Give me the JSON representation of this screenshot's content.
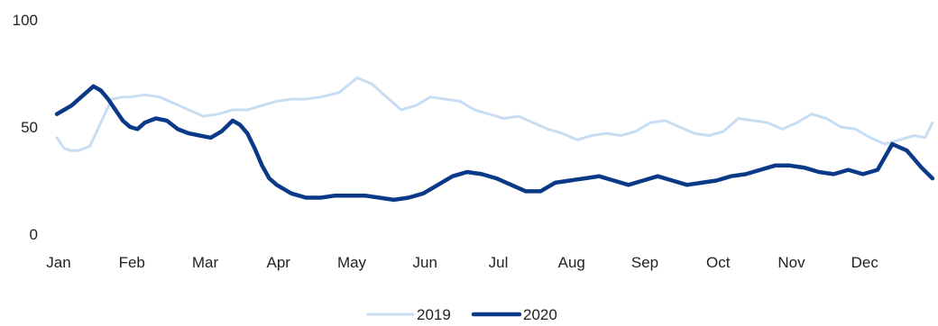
{
  "chart_data": {
    "type": "line",
    "ylim": [
      0,
      100
    ],
    "yticks": [
      "0",
      "50",
      "100"
    ],
    "grid": false,
    "legend_position": "bottom-center",
    "months": [
      "Jan",
      "Feb",
      "Mar",
      "Apr",
      "May",
      "Jun",
      "Jul",
      "Aug",
      "Sep",
      "Oct",
      "Nov",
      "Dec"
    ],
    "x_domain": [
      0,
      12
    ],
    "series": [
      {
        "name": "2019",
        "color": "#c9ddf2",
        "x": [
          0.0,
          0.1,
          0.2,
          0.3,
          0.45,
          0.6,
          0.75,
          0.9,
          1.0,
          1.2,
          1.4,
          1.6,
          1.8,
          2.0,
          2.2,
          2.4,
          2.6,
          2.8,
          3.0,
          3.2,
          3.4,
          3.6,
          3.85,
          4.1,
          4.3,
          4.5,
          4.7,
          4.9,
          5.1,
          5.3,
          5.5,
          5.7,
          5.9,
          6.1,
          6.3,
          6.5,
          6.7,
          6.9,
          7.1,
          7.3,
          7.5,
          7.7,
          7.9,
          8.1,
          8.3,
          8.5,
          8.7,
          8.9,
          9.1,
          9.3,
          9.5,
          9.7,
          9.9,
          10.1,
          10.3,
          10.5,
          10.7,
          10.9,
          11.1,
          11.3,
          11.5,
          11.7,
          11.85,
          11.95
        ],
        "values": [
          45,
          40,
          39,
          39,
          41,
          52,
          63,
          64,
          64,
          65,
          64,
          61,
          58,
          55,
          56,
          58,
          58,
          60,
          62,
          63,
          63,
          64,
          66,
          73,
          70,
          64,
          58,
          60,
          64,
          63,
          62,
          58,
          56,
          54,
          55,
          52,
          49,
          47,
          44,
          46,
          47,
          46,
          48,
          52,
          53,
          50,
          47,
          46,
          48,
          54,
          53,
          52,
          49,
          52,
          56,
          54,
          50,
          49,
          45,
          42,
          44,
          46,
          45,
          52
        ]
      },
      {
        "name": "2020",
        "color": "#0a3a87",
        "x": [
          0.0,
          0.1,
          0.2,
          0.3,
          0.4,
          0.5,
          0.6,
          0.7,
          0.8,
          0.9,
          1.0,
          1.1,
          1.2,
          1.35,
          1.5,
          1.65,
          1.8,
          1.95,
          2.1,
          2.25,
          2.4,
          2.5,
          2.6,
          2.7,
          2.8,
          2.9,
          3.0,
          3.2,
          3.4,
          3.6,
          3.8,
          4.0,
          4.2,
          4.4,
          4.6,
          4.8,
          5.0,
          5.2,
          5.4,
          5.6,
          5.8,
          6.0,
          6.2,
          6.4,
          6.6,
          6.8,
          7.0,
          7.2,
          7.4,
          7.6,
          7.8,
          8.0,
          8.2,
          8.4,
          8.6,
          8.8,
          9.0,
          9.2,
          9.4,
          9.6,
          9.8,
          10.0,
          10.2,
          10.4,
          10.6,
          10.8,
          11.0,
          11.2,
          11.4,
          11.6,
          11.8,
          11.95
        ],
        "values": [
          56,
          58,
          60,
          63,
          66,
          69,
          67,
          63,
          58,
          53,
          50,
          49,
          52,
          54,
          53,
          49,
          47,
          46,
          45,
          48,
          53,
          51,
          47,
          40,
          32,
          26,
          23,
          19,
          17,
          17,
          18,
          18,
          18,
          17,
          16,
          17,
          19,
          23,
          27,
          29,
          28,
          26,
          23,
          20,
          20,
          24,
          25,
          26,
          27,
          25,
          23,
          25,
          27,
          25,
          23,
          24,
          25,
          27,
          28,
          30,
          32,
          32,
          31,
          29,
          28,
          30,
          28,
          30,
          42,
          39,
          31,
          26
        ]
      }
    ]
  }
}
